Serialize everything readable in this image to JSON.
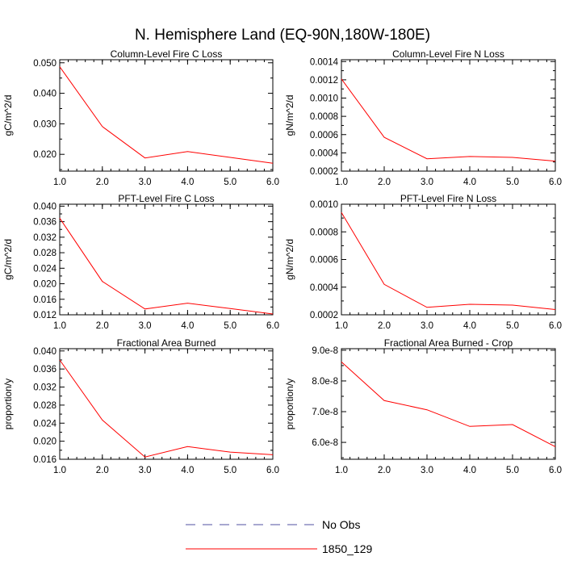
{
  "figure": {
    "title": "N. Hemisphere Land (EQ-90N,180W-180E)"
  },
  "legend": {
    "entries": [
      {
        "label": "No Obs",
        "color": "#5050a0",
        "dash": true
      },
      {
        "label": "1850_129",
        "color": "#ff0000",
        "dash": false
      }
    ]
  },
  "chart_data": [
    {
      "type": "line",
      "title": "Column-Level Fire C Loss",
      "ylabel": "gC/m^2/d",
      "xlabel": "",
      "x": [
        1,
        2,
        3,
        4,
        5,
        6
      ],
      "xlim": [
        1,
        6
      ],
      "xticks": [
        "1.0",
        "2.0",
        "3.0",
        "4.0",
        "5.0",
        "6.0"
      ],
      "ylim": [
        0.0145,
        0.051
      ],
      "yticks": [
        {
          "v": 0.02,
          "label": "0.020"
        },
        {
          "v": 0.03,
          "label": "0.030"
        },
        {
          "v": 0.04,
          "label": "0.040"
        },
        {
          "v": 0.05,
          "label": "0.050"
        }
      ],
      "yminor": [
        0.015,
        0.025,
        0.035,
        0.045
      ],
      "series": [
        {
          "name": "1850_129",
          "color": "#ff0000",
          "values": [
            0.0487,
            0.0291,
            0.0188,
            0.0209,
            0.019,
            0.0171
          ]
        }
      ]
    },
    {
      "type": "line",
      "title": "Column-Level Fire N Loss",
      "ylabel": "gN/m^2/d",
      "xlabel": "",
      "x": [
        1,
        2,
        3,
        4,
        5,
        6
      ],
      "xlim": [
        1,
        6
      ],
      "xticks": [
        "1.0",
        "2.0",
        "3.0",
        "4.0",
        "5.0",
        "6.0"
      ],
      "ylim": [
        0.0002,
        0.00142
      ],
      "yticks": [
        {
          "v": 0.0002,
          "label": "0.0002"
        },
        {
          "v": 0.0004,
          "label": "0.0004"
        },
        {
          "v": 0.0006,
          "label": "0.0006"
        },
        {
          "v": 0.0008,
          "label": "0.0008"
        },
        {
          "v": 0.001,
          "label": "0.0010"
        },
        {
          "v": 0.0012,
          "label": "0.0012"
        },
        {
          "v": 0.0014,
          "label": "0.0014"
        }
      ],
      "yminor": [
        0.0003,
        0.0005,
        0.0007,
        0.0009,
        0.0011,
        0.0013
      ],
      "series": [
        {
          "name": "1850_129",
          "color": "#ff0000",
          "values": [
            0.00121,
            0.00057,
            0.000335,
            0.00036,
            0.00035,
            0.00031
          ]
        }
      ]
    },
    {
      "type": "line",
      "title": "PFT-Level Fire C Loss",
      "ylabel": "gC/m^2/d",
      "xlabel": "",
      "x": [
        1,
        2,
        3,
        4,
        5,
        6
      ],
      "xlim": [
        1,
        6
      ],
      "xticks": [
        "1.0",
        "2.0",
        "3.0",
        "4.0",
        "5.0",
        "6.0"
      ],
      "ylim": [
        0.012,
        0.0405
      ],
      "yticks": [
        {
          "v": 0.012,
          "label": "0.012"
        },
        {
          "v": 0.016,
          "label": "0.016"
        },
        {
          "v": 0.02,
          "label": "0.020"
        },
        {
          "v": 0.024,
          "label": "0.024"
        },
        {
          "v": 0.028,
          "label": "0.028"
        },
        {
          "v": 0.032,
          "label": "0.032"
        },
        {
          "v": 0.036,
          "label": "0.036"
        },
        {
          "v": 0.04,
          "label": "0.040"
        }
      ],
      "yminor": [
        0.014,
        0.018,
        0.022,
        0.026,
        0.03,
        0.034,
        0.038
      ],
      "series": [
        {
          "name": "1850_129",
          "color": "#ff0000",
          "values": [
            0.0369,
            0.0206,
            0.0135,
            0.015,
            0.0136,
            0.0122
          ]
        }
      ]
    },
    {
      "type": "line",
      "title": "PFT-Level Fire N Loss",
      "ylabel": "gN/m^2/d",
      "xlabel": "",
      "x": [
        1,
        2,
        3,
        4,
        5,
        6
      ],
      "xlim": [
        1,
        6
      ],
      "xticks": [
        "1.0",
        "2.0",
        "3.0",
        "4.0",
        "5.0",
        "6.0"
      ],
      "ylim": [
        0.0002,
        0.001
      ],
      "yticks": [
        {
          "v": 0.0002,
          "label": "0.0002"
        },
        {
          "v": 0.0004,
          "label": "0.0004"
        },
        {
          "v": 0.0006,
          "label": "0.0006"
        },
        {
          "v": 0.0008,
          "label": "0.0008"
        },
        {
          "v": 0.001,
          "label": "0.0010"
        }
      ],
      "yminor": [
        0.0003,
        0.0005,
        0.0007,
        0.0009
      ],
      "series": [
        {
          "name": "1850_129",
          "color": "#ff0000",
          "values": [
            0.00094,
            0.00042,
            0.000254,
            0.000276,
            0.00027,
            0.000238
          ]
        }
      ]
    },
    {
      "type": "line",
      "title": "Fractional Area Burned",
      "ylabel": "proportion/y",
      "xlabel": "",
      "x": [
        1,
        2,
        3,
        4,
        5,
        6
      ],
      "xlim": [
        1,
        6
      ],
      "xticks": [
        "1.0",
        "2.0",
        "3.0",
        "4.0",
        "5.0",
        "6.0"
      ],
      "ylim": [
        0.016,
        0.0405
      ],
      "yticks": [
        {
          "v": 0.016,
          "label": "0.016"
        },
        {
          "v": 0.02,
          "label": "0.020"
        },
        {
          "v": 0.024,
          "label": "0.024"
        },
        {
          "v": 0.028,
          "label": "0.028"
        },
        {
          "v": 0.032,
          "label": "0.032"
        },
        {
          "v": 0.036,
          "label": "0.036"
        },
        {
          "v": 0.04,
          "label": "0.040"
        }
      ],
      "yminor": [
        0.018,
        0.022,
        0.026,
        0.03,
        0.034,
        0.038
      ],
      "series": [
        {
          "name": "1850_129",
          "color": "#ff0000",
          "values": [
            0.038,
            0.0247,
            0.0165,
            0.0188,
            0.0176,
            0.017
          ]
        }
      ]
    },
    {
      "type": "line",
      "title": "Fractional Area Burned - Crop",
      "ylabel": "proportion/y",
      "xlabel": "",
      "x": [
        1,
        2,
        3,
        4,
        5,
        6
      ],
      "xlim": [
        1,
        6
      ],
      "xticks": [
        "1.0",
        "2.0",
        "3.0",
        "4.0",
        "5.0",
        "6.0"
      ],
      "ylim": [
        5.45e-08,
        9.05e-08
      ],
      "yticks": [
        {
          "v": 6e-08,
          "label": "6.0e-8"
        },
        {
          "v": 7e-08,
          "label": "7.0e-8"
        },
        {
          "v": 8e-08,
          "label": "8.0e-8"
        },
        {
          "v": 9e-08,
          "label": "9.0e-8"
        }
      ],
      "yminor": [
        5.5e-08,
        6.5e-08,
        7.5e-08,
        8.5e-08
      ],
      "series": [
        {
          "name": "1850_129",
          "color": "#ff0000",
          "values": [
            8.62e-08,
            7.36e-08,
            7.06e-08,
            6.52e-08,
            6.58e-08,
            5.86e-08
          ]
        }
      ]
    }
  ]
}
